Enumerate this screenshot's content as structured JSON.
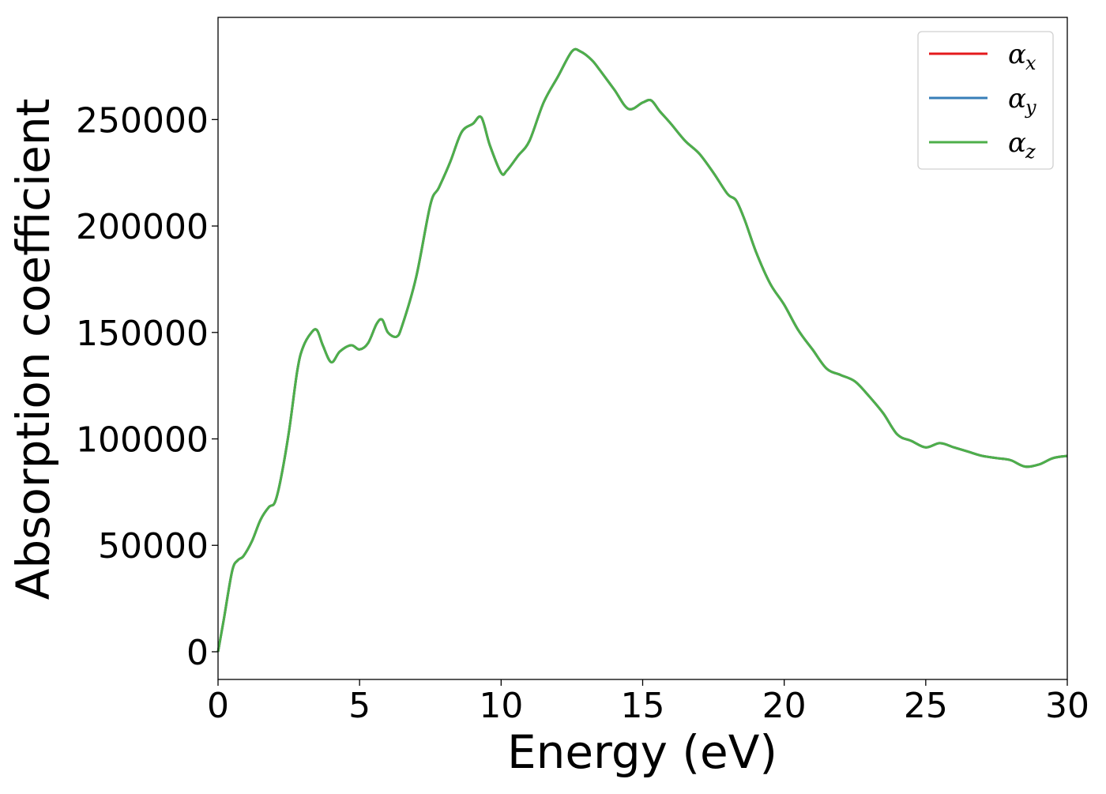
{
  "chart_data": {
    "type": "line",
    "title": "",
    "xlabel": "Energy (eV)",
    "ylabel": "Absorption coefficient",
    "xlim": [
      0,
      30
    ],
    "ylim": [
      -13000,
      298000
    ],
    "xticks": [
      0,
      5,
      10,
      15,
      20,
      25,
      30
    ],
    "xtick_labels": [
      "0",
      "5",
      "10",
      "15",
      "20",
      "25",
      "30"
    ],
    "yticks": [
      0,
      50000,
      100000,
      150000,
      200000,
      250000
    ],
    "ytick_labels": [
      "0",
      "50000",
      "100000",
      "150000",
      "200000",
      "250000"
    ],
    "grid": false,
    "legend_position": "top-right",
    "x": [
      0,
      0.2,
      0.5,
      0.7,
      0.9,
      1.2,
      1.5,
      1.8,
      2.0,
      2.2,
      2.5,
      2.8,
      3.0,
      3.3,
      3.5,
      3.7,
      4.0,
      4.3,
      4.7,
      5.0,
      5.3,
      5.6,
      5.8,
      6.0,
      6.3,
      6.5,
      7.0,
      7.5,
      7.8,
      8.2,
      8.6,
      9.0,
      9.3,
      9.6,
      10.0,
      10.2,
      10.6,
      11.0,
      11.5,
      12.0,
      12.5,
      12.8,
      13.2,
      13.5,
      14.0,
      14.5,
      15.0,
      15.3,
      15.6,
      16.0,
      16.5,
      17.0,
      17.5,
      18.0,
      18.3,
      18.6,
      19.0,
      19.5,
      20.0,
      20.5,
      21.0,
      21.5,
      22.0,
      22.5,
      23.0,
      23.5,
      24.0,
      24.5,
      25.0,
      25.5,
      26.0,
      26.5,
      27.0,
      27.5,
      28.0,
      28.5,
      29.0,
      29.5,
      30.0
    ],
    "series": [
      {
        "name": "αx",
        "label_main": "α",
        "label_sub": "x",
        "color": "#e41a1c",
        "values": [
          0,
          15000,
          38000,
          43000,
          45000,
          52000,
          62000,
          68000,
          70000,
          80000,
          103000,
          132000,
          143000,
          150000,
          151000,
          144000,
          136000,
          141000,
          144000,
          142000,
          145000,
          154000,
          156000,
          150000,
          148000,
          153000,
          176000,
          210000,
          218000,
          230000,
          244000,
          248000,
          251000,
          238000,
          225000,
          226000,
          233000,
          240000,
          258000,
          270000,
          282000,
          282000,
          278000,
          273000,
          264000,
          255000,
          258000,
          259000,
          254000,
          248000,
          240000,
          234000,
          225000,
          215000,
          212000,
          203000,
          188000,
          173000,
          163000,
          151000,
          142000,
          133000,
          130000,
          127000,
          120000,
          112000,
          102000,
          99000,
          96000,
          98000,
          96000,
          94000,
          92000,
          91000,
          90000,
          87000,
          88000,
          91000,
          92000
        ]
      },
      {
        "name": "αy",
        "label_main": "α",
        "label_sub": "y",
        "color": "#377eb8",
        "values": [
          0,
          15000,
          38000,
          43000,
          45000,
          52000,
          62000,
          68000,
          70000,
          80000,
          103000,
          132000,
          143000,
          150000,
          151000,
          144000,
          136000,
          141000,
          144000,
          142000,
          145000,
          154000,
          156000,
          150000,
          148000,
          153000,
          176000,
          210000,
          218000,
          230000,
          244000,
          248000,
          251000,
          238000,
          225000,
          226000,
          233000,
          240000,
          258000,
          270000,
          282000,
          282000,
          278000,
          273000,
          264000,
          255000,
          258000,
          259000,
          254000,
          248000,
          240000,
          234000,
          225000,
          215000,
          212000,
          203000,
          188000,
          173000,
          163000,
          151000,
          142000,
          133000,
          130000,
          127000,
          120000,
          112000,
          102000,
          99000,
          96000,
          98000,
          96000,
          94000,
          92000,
          91000,
          90000,
          87000,
          88000,
          91000,
          92000
        ]
      },
      {
        "name": "αz",
        "label_main": "α",
        "label_sub": "z",
        "color": "#4daf4a",
        "values": [
          0,
          15000,
          38000,
          43000,
          45000,
          52000,
          62000,
          68000,
          70000,
          80000,
          103000,
          132000,
          143000,
          150000,
          151000,
          144000,
          136000,
          141000,
          144000,
          142000,
          145000,
          154000,
          156000,
          150000,
          148000,
          153000,
          176000,
          210000,
          218000,
          230000,
          244000,
          248000,
          251000,
          238000,
          225000,
          226000,
          233000,
          240000,
          258000,
          270000,
          282000,
          282000,
          278000,
          273000,
          264000,
          255000,
          258000,
          259000,
          254000,
          248000,
          240000,
          234000,
          225000,
          215000,
          212000,
          203000,
          188000,
          173000,
          163000,
          151000,
          142000,
          133000,
          130000,
          127000,
          120000,
          112000,
          102000,
          99000,
          96000,
          98000,
          96000,
          94000,
          92000,
          91000,
          90000,
          87000,
          88000,
          91000,
          92000
        ]
      }
    ]
  }
}
